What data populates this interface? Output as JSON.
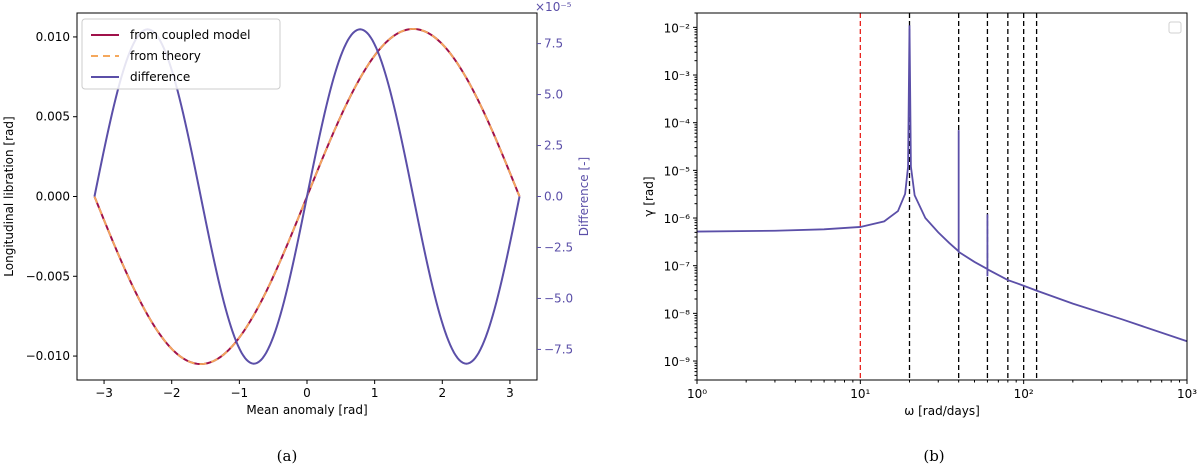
{
  "chart_data": [
    {
      "type": "line",
      "panel_label": "(a)",
      "xlabel": "Mean anomaly [rad]",
      "ylabel": "Longitudinal libration [rad]",
      "y2label": "Difference [-]",
      "y2_offset_text": "×10⁻⁵",
      "xlim": [
        -3.4,
        3.4
      ],
      "ylim": [
        -0.0115,
        0.0115
      ],
      "y2lim": [
        -9.0,
        9.0
      ],
      "xticks": [
        -3,
        -2,
        -1,
        0,
        1,
        2,
        3
      ],
      "xtick_labels": [
        "−3",
        "−2",
        "−1",
        "0",
        "1",
        "2",
        "3"
      ],
      "yticks": [
        -0.01,
        -0.005,
        0.0,
        0.005,
        0.01
      ],
      "ytick_labels": [
        "−0.010",
        "−0.005",
        "0.000",
        "0.005",
        "0.010"
      ],
      "y2ticks": [
        -7.5,
        -5.0,
        -2.5,
        0.0,
        2.5,
        5.0,
        7.5
      ],
      "y2tick_labels": [
        "−7.5",
        "−5.0",
        "−2.5",
        "0.0",
        "2.5",
        "5.0",
        "7.5"
      ],
      "legend_position": "top-left",
      "series": [
        {
          "name": "from coupled model",
          "color": "#a0114a",
          "style": "solid",
          "axis": "left",
          "amplitude": 0.0105,
          "form": "amp*sin(x)",
          "x_range": [
            -3.1416,
            3.1416
          ]
        },
        {
          "name": "from theory",
          "color": "#f5a85c",
          "style": "dashed",
          "axis": "left",
          "amplitude": 0.0105,
          "form": "amp*sin(x)",
          "x_range": [
            -3.1416,
            3.1416
          ]
        },
        {
          "name": "difference",
          "color": "#5b4fa8",
          "style": "solid",
          "axis": "right",
          "amplitude": 8.2,
          "form": "amp*sin(2x)",
          "x_range": [
            -3.1416,
            3.1416
          ]
        }
      ]
    },
    {
      "type": "line",
      "panel_label": "(b)",
      "xlabel": "ω [rad/days]",
      "ylabel": "γ [rad]",
      "xscale": "log",
      "yscale": "log",
      "xlim": [
        1,
        1000
      ],
      "ylim": [
        4e-10,
        0.02
      ],
      "xticks": [
        1,
        10,
        100,
        1000
      ],
      "xtick_labels": [
        "10⁰",
        "10¹",
        "10²",
        "10³"
      ],
      "yticks": [
        1e-09,
        1e-08,
        1e-07,
        1e-06,
        1e-05,
        0.0001,
        0.001,
        0.01
      ],
      "ytick_labels": [
        "10⁻⁹",
        "10⁻⁸",
        "10⁻⁷",
        "10⁻⁶",
        "10⁻⁵",
        "10⁻⁴",
        "10⁻³",
        "10⁻²"
      ],
      "legend_position": "top-right",
      "vlines": [
        {
          "x": 10,
          "color": "#e8221c",
          "style": "dashed"
        },
        {
          "x": 20,
          "color": "#000000",
          "style": "dashed"
        },
        {
          "x": 40,
          "color": "#000000",
          "style": "dashed"
        },
        {
          "x": 60,
          "color": "#000000",
          "style": "dashed"
        },
        {
          "x": 80,
          "color": "#000000",
          "style": "dashed"
        },
        {
          "x": 100,
          "color": "#000000",
          "style": "dashed"
        },
        {
          "x": 120,
          "color": "#000000",
          "style": "dashed"
        }
      ],
      "series": [
        {
          "color": "#5b4fa8",
          "points": [
            [
              1,
              5.2e-07
            ],
            [
              3,
              5.4e-07
            ],
            [
              6,
              5.8e-07
            ],
            [
              10,
              6.5e-07
            ],
            [
              14,
              8.5e-07
            ],
            [
              17,
              1.4e-06
            ],
            [
              18.8,
              3.2e-06
            ],
            [
              19.6,
              1.2e-05
            ],
            [
              20,
              0.011
            ],
            [
              20.4,
              1.2e-05
            ],
            [
              21.5,
              3e-06
            ],
            [
              25,
              1e-06
            ],
            [
              30,
              5e-07
            ],
            [
              35,
              3e-07
            ],
            [
              40,
              2e-07
            ],
            [
              40,
              7e-05
            ],
            [
              40,
              1.95e-07
            ],
            [
              50,
              1.2e-07
            ],
            [
              60,
              8.5e-08
            ],
            [
              60,
              1.2e-06
            ],
            [
              60,
              6e-08
            ],
            [
              60,
              8.4e-08
            ],
            [
              80,
              5e-08
            ],
            [
              100,
              3.8e-08
            ],
            [
              120,
              3e-08
            ],
            [
              200,
              1.6e-08
            ],
            [
              400,
              7.5e-09
            ],
            [
              1000,
              2.6e-09
            ]
          ]
        }
      ]
    }
  ]
}
